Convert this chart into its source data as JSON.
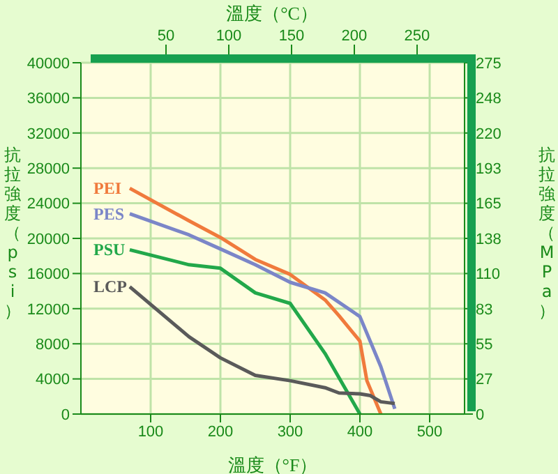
{
  "chart_data": {
    "type": "line",
    "xlabel": "溫度（°F）",
    "x2label": "溫度（°C）",
    "ylabel": "抗拉強度（psi）",
    "y2label": "抗拉強度（MPa）",
    "xlim": [
      0,
      550
    ],
    "xticks": [
      100,
      200,
      300,
      400,
      500
    ],
    "x2lim": [
      -17.8,
      287.8
    ],
    "x2ticks": [
      50,
      100,
      150,
      200,
      250
    ],
    "ylim": [
      0,
      40000
    ],
    "yticks": [
      0,
      4000,
      8000,
      12000,
      16000,
      20000,
      24000,
      28000,
      32000,
      36000,
      40000
    ],
    "y2lim": [
      0,
      275
    ],
    "y2ticks": [
      0,
      {
        "value": 27.5,
        "label": "27"
      },
      55,
      {
        "value": 82.5,
        "label": "83"
      },
      110,
      {
        "value": 137.5,
        "label": "138"
      },
      165,
      {
        "value": 192.5,
        "label": "193"
      },
      220,
      {
        "value": 247.5,
        "label": "248"
      },
      275
    ],
    "grid": true,
    "legend": false,
    "marker": "none",
    "line_style": "solid",
    "series": [
      {
        "name": "PEI",
        "color": "#f07a3c",
        "x": [
          70,
          155,
          200,
          250,
          300,
          350,
          370,
          400,
          410,
          430
        ],
        "values": [
          25700,
          22000,
          20100,
          17600,
          15900,
          13000,
          11200,
          8300,
          3800,
          0
        ]
      },
      {
        "name": "PES",
        "color": "#7b86c8",
        "x": [
          70,
          155,
          200,
          250,
          300,
          350,
          400,
          430,
          450
        ],
        "values": [
          22800,
          20400,
          18800,
          17000,
          15000,
          13800,
          11100,
          5400,
          600
        ]
      },
      {
        "name": "PSU",
        "color": "#22a84a",
        "x": [
          70,
          155,
          200,
          250,
          300,
          350,
          400
        ],
        "values": [
          18700,
          17000,
          16600,
          13800,
          12600,
          6900,
          0
        ]
      },
      {
        "name": "LCP",
        "color": "#5a5a5a",
        "x": [
          70,
          155,
          200,
          250,
          300,
          350,
          370,
          400,
          415,
          430,
          450
        ],
        "values": [
          14500,
          8800,
          6400,
          4400,
          3800,
          3000,
          2400,
          2300,
          2100,
          1400,
          1200
        ]
      }
    ]
  }
}
